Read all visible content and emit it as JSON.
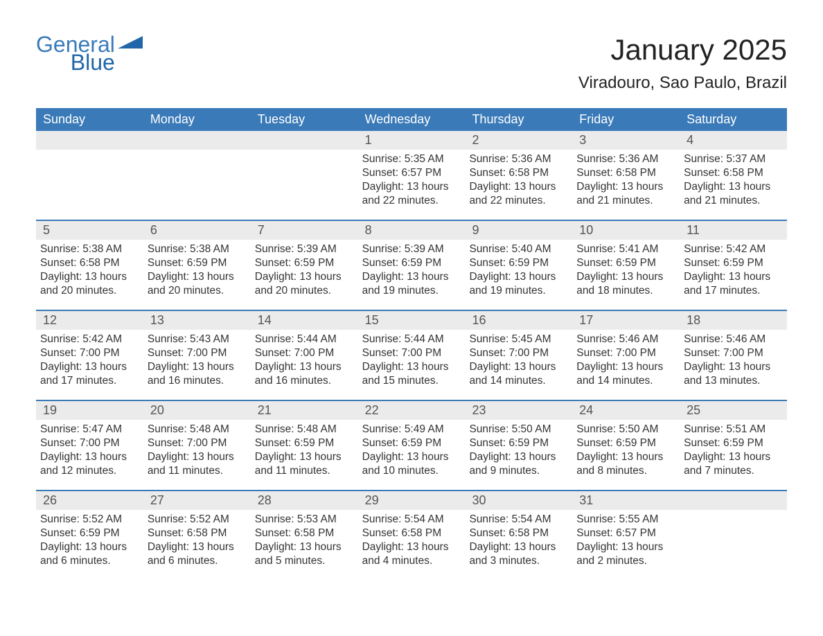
{
  "logo": {
    "general": "General",
    "blue": "Blue",
    "icon_color": "#2066a8"
  },
  "title": "January 2025",
  "location": "Viradouro, Sao Paulo, Brazil",
  "colors": {
    "header_bg": "#3a7ab8",
    "header_text": "#ffffff",
    "daybar_bg": "#ebebeb",
    "week_border": "#3a7ab8",
    "text": "#333333",
    "title_text": "#222222"
  },
  "typography": {
    "title_fontsize": 42,
    "location_fontsize": 24,
    "weekday_fontsize": 18,
    "daynum_fontsize": 18,
    "body_fontsize": 15.5
  },
  "weekdays": [
    "Sunday",
    "Monday",
    "Tuesday",
    "Wednesday",
    "Thursday",
    "Friday",
    "Saturday"
  ],
  "labels": {
    "sunrise": "Sunrise:",
    "sunset": "Sunset:",
    "daylight": "Daylight:"
  },
  "weeks": [
    [
      {
        "empty": true
      },
      {
        "empty": true
      },
      {
        "empty": true
      },
      {
        "day": "1",
        "sunrise": "5:35 AM",
        "sunset": "6:57 PM",
        "daylight": "13 hours and 22 minutes."
      },
      {
        "day": "2",
        "sunrise": "5:36 AM",
        "sunset": "6:58 PM",
        "daylight": "13 hours and 22 minutes."
      },
      {
        "day": "3",
        "sunrise": "5:36 AM",
        "sunset": "6:58 PM",
        "daylight": "13 hours and 21 minutes."
      },
      {
        "day": "4",
        "sunrise": "5:37 AM",
        "sunset": "6:58 PM",
        "daylight": "13 hours and 21 minutes."
      }
    ],
    [
      {
        "day": "5",
        "sunrise": "5:38 AM",
        "sunset": "6:58 PM",
        "daylight": "13 hours and 20 minutes."
      },
      {
        "day": "6",
        "sunrise": "5:38 AM",
        "sunset": "6:59 PM",
        "daylight": "13 hours and 20 minutes."
      },
      {
        "day": "7",
        "sunrise": "5:39 AM",
        "sunset": "6:59 PM",
        "daylight": "13 hours and 20 minutes."
      },
      {
        "day": "8",
        "sunrise": "5:39 AM",
        "sunset": "6:59 PM",
        "daylight": "13 hours and 19 minutes."
      },
      {
        "day": "9",
        "sunrise": "5:40 AM",
        "sunset": "6:59 PM",
        "daylight": "13 hours and 19 minutes."
      },
      {
        "day": "10",
        "sunrise": "5:41 AM",
        "sunset": "6:59 PM",
        "daylight": "13 hours and 18 minutes."
      },
      {
        "day": "11",
        "sunrise": "5:42 AM",
        "sunset": "6:59 PM",
        "daylight": "13 hours and 17 minutes."
      }
    ],
    [
      {
        "day": "12",
        "sunrise": "5:42 AM",
        "sunset": "7:00 PM",
        "daylight": "13 hours and 17 minutes."
      },
      {
        "day": "13",
        "sunrise": "5:43 AM",
        "sunset": "7:00 PM",
        "daylight": "13 hours and 16 minutes."
      },
      {
        "day": "14",
        "sunrise": "5:44 AM",
        "sunset": "7:00 PM",
        "daylight": "13 hours and 16 minutes."
      },
      {
        "day": "15",
        "sunrise": "5:44 AM",
        "sunset": "7:00 PM",
        "daylight": "13 hours and 15 minutes."
      },
      {
        "day": "16",
        "sunrise": "5:45 AM",
        "sunset": "7:00 PM",
        "daylight": "13 hours and 14 minutes."
      },
      {
        "day": "17",
        "sunrise": "5:46 AM",
        "sunset": "7:00 PM",
        "daylight": "13 hours and 14 minutes."
      },
      {
        "day": "18",
        "sunrise": "5:46 AM",
        "sunset": "7:00 PM",
        "daylight": "13 hours and 13 minutes."
      }
    ],
    [
      {
        "day": "19",
        "sunrise": "5:47 AM",
        "sunset": "7:00 PM",
        "daylight": "13 hours and 12 minutes."
      },
      {
        "day": "20",
        "sunrise": "5:48 AM",
        "sunset": "7:00 PM",
        "daylight": "13 hours and 11 minutes."
      },
      {
        "day": "21",
        "sunrise": "5:48 AM",
        "sunset": "6:59 PM",
        "daylight": "13 hours and 11 minutes."
      },
      {
        "day": "22",
        "sunrise": "5:49 AM",
        "sunset": "6:59 PM",
        "daylight": "13 hours and 10 minutes."
      },
      {
        "day": "23",
        "sunrise": "5:50 AM",
        "sunset": "6:59 PM",
        "daylight": "13 hours and 9 minutes."
      },
      {
        "day": "24",
        "sunrise": "5:50 AM",
        "sunset": "6:59 PM",
        "daylight": "13 hours and 8 minutes."
      },
      {
        "day": "25",
        "sunrise": "5:51 AM",
        "sunset": "6:59 PM",
        "daylight": "13 hours and 7 minutes."
      }
    ],
    [
      {
        "day": "26",
        "sunrise": "5:52 AM",
        "sunset": "6:59 PM",
        "daylight": "13 hours and 6 minutes."
      },
      {
        "day": "27",
        "sunrise": "5:52 AM",
        "sunset": "6:58 PM",
        "daylight": "13 hours and 6 minutes."
      },
      {
        "day": "28",
        "sunrise": "5:53 AM",
        "sunset": "6:58 PM",
        "daylight": "13 hours and 5 minutes."
      },
      {
        "day": "29",
        "sunrise": "5:54 AM",
        "sunset": "6:58 PM",
        "daylight": "13 hours and 4 minutes."
      },
      {
        "day": "30",
        "sunrise": "5:54 AM",
        "sunset": "6:58 PM",
        "daylight": "13 hours and 3 minutes."
      },
      {
        "day": "31",
        "sunrise": "5:55 AM",
        "sunset": "6:57 PM",
        "daylight": "13 hours and 2 minutes."
      },
      {
        "empty": true
      }
    ]
  ]
}
